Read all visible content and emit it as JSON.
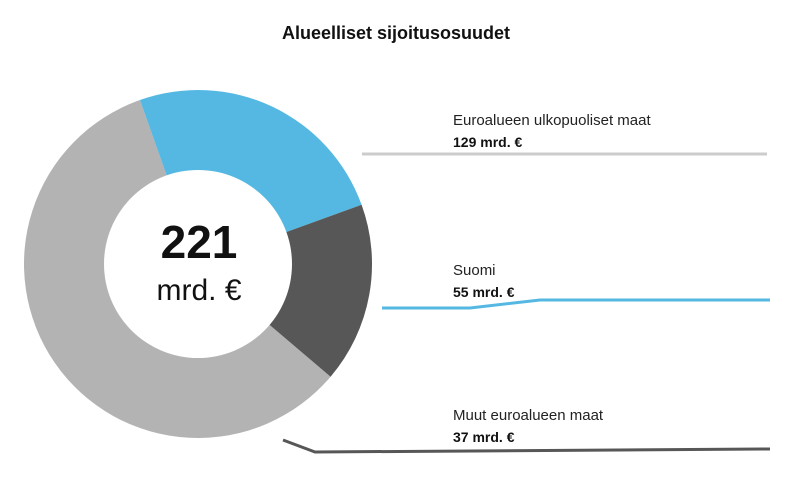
{
  "chart_data": {
    "type": "pie",
    "title": "Alueelliset sijoitusosuudet",
    "total": {
      "value": "221",
      "unit": "mrd. €"
    },
    "slices": [
      {
        "name": "Euroalueen ulkopuoliset maat",
        "value": 129,
        "value_label": "129 mrd. €",
        "color": "#b3b3b3"
      },
      {
        "name": "Suomi",
        "value": 55,
        "value_label": "55 mrd. €",
        "color": "#55b8e2"
      },
      {
        "name": "Muut euroalueen maat",
        "value": 37,
        "value_label": "37 mrd. €",
        "color": "#575757"
      }
    ]
  }
}
